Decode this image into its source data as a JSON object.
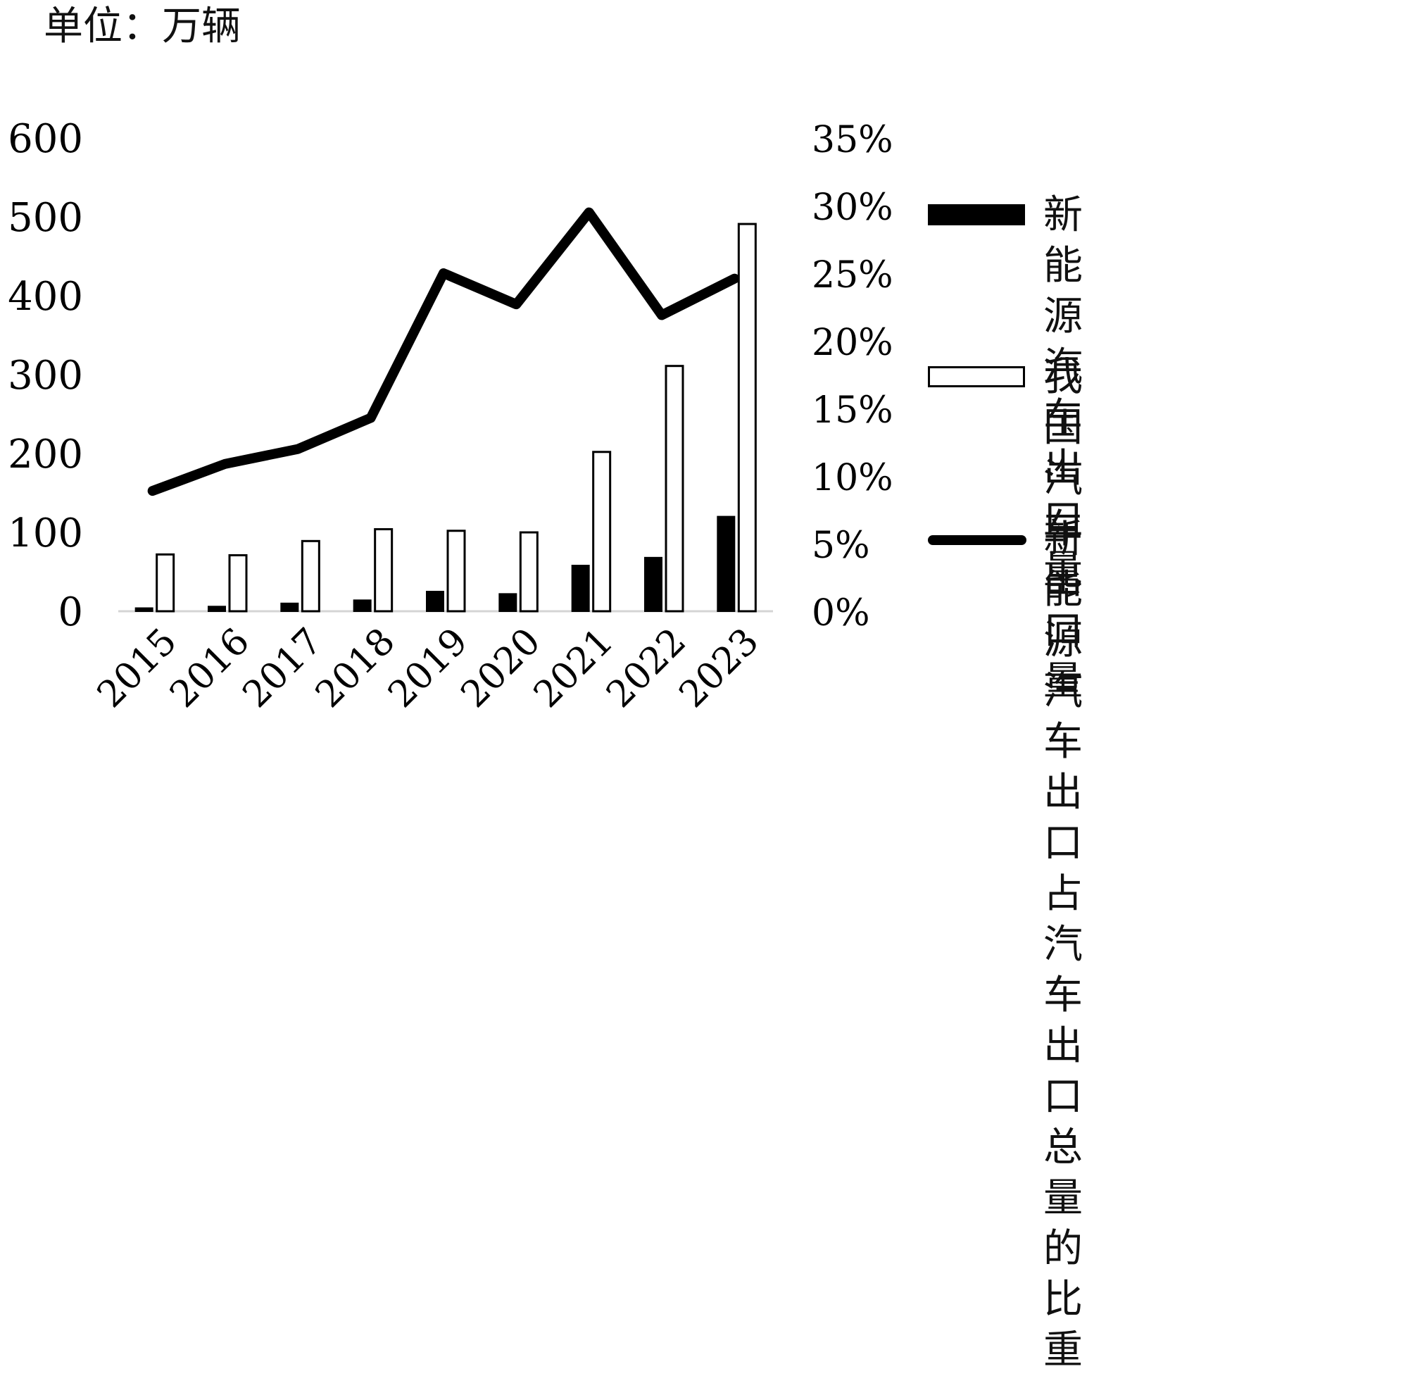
{
  "unit_label": "单位：万辆",
  "chart_data": {
    "type": "bar",
    "categories": [
      "2015",
      "2016",
      "2017",
      "2018",
      "2019",
      "2020",
      "2021",
      "2022",
      "2023"
    ],
    "series": [
      {
        "name": "新能源汽车出口量",
        "kind": "bar",
        "axis": "left",
        "fill": "#000000",
        "values": [
          4,
          6,
          10,
          14,
          25,
          22,
          58,
          68,
          120
        ]
      },
      {
        "name": "我国汽车出口量",
        "kind": "bar",
        "axis": "left",
        "fill": "#ffffff",
        "values": [
          72,
          71,
          89,
          104,
          102,
          100,
          202,
          311,
          491
        ]
      },
      {
        "name": "新能源汽车出口\n占汽车出口总量\n的比重",
        "kind": "line",
        "axis": "right",
        "values": [
          0.089,
          0.109,
          0.12,
          0.143,
          0.25,
          0.227,
          0.295,
          0.219,
          0.246
        ]
      }
    ],
    "y_left": {
      "min": 0,
      "max": 600,
      "ticks": [
        "0",
        "100",
        "200",
        "300",
        "400",
        "500",
        "600"
      ]
    },
    "y_right": {
      "min": 0,
      "max": 0.35,
      "ticks": [
        "0%",
        "5%",
        "10%",
        "15%",
        "20%",
        "25%",
        "30%",
        "35%"
      ]
    },
    "grid": false,
    "legend_position": "right"
  }
}
